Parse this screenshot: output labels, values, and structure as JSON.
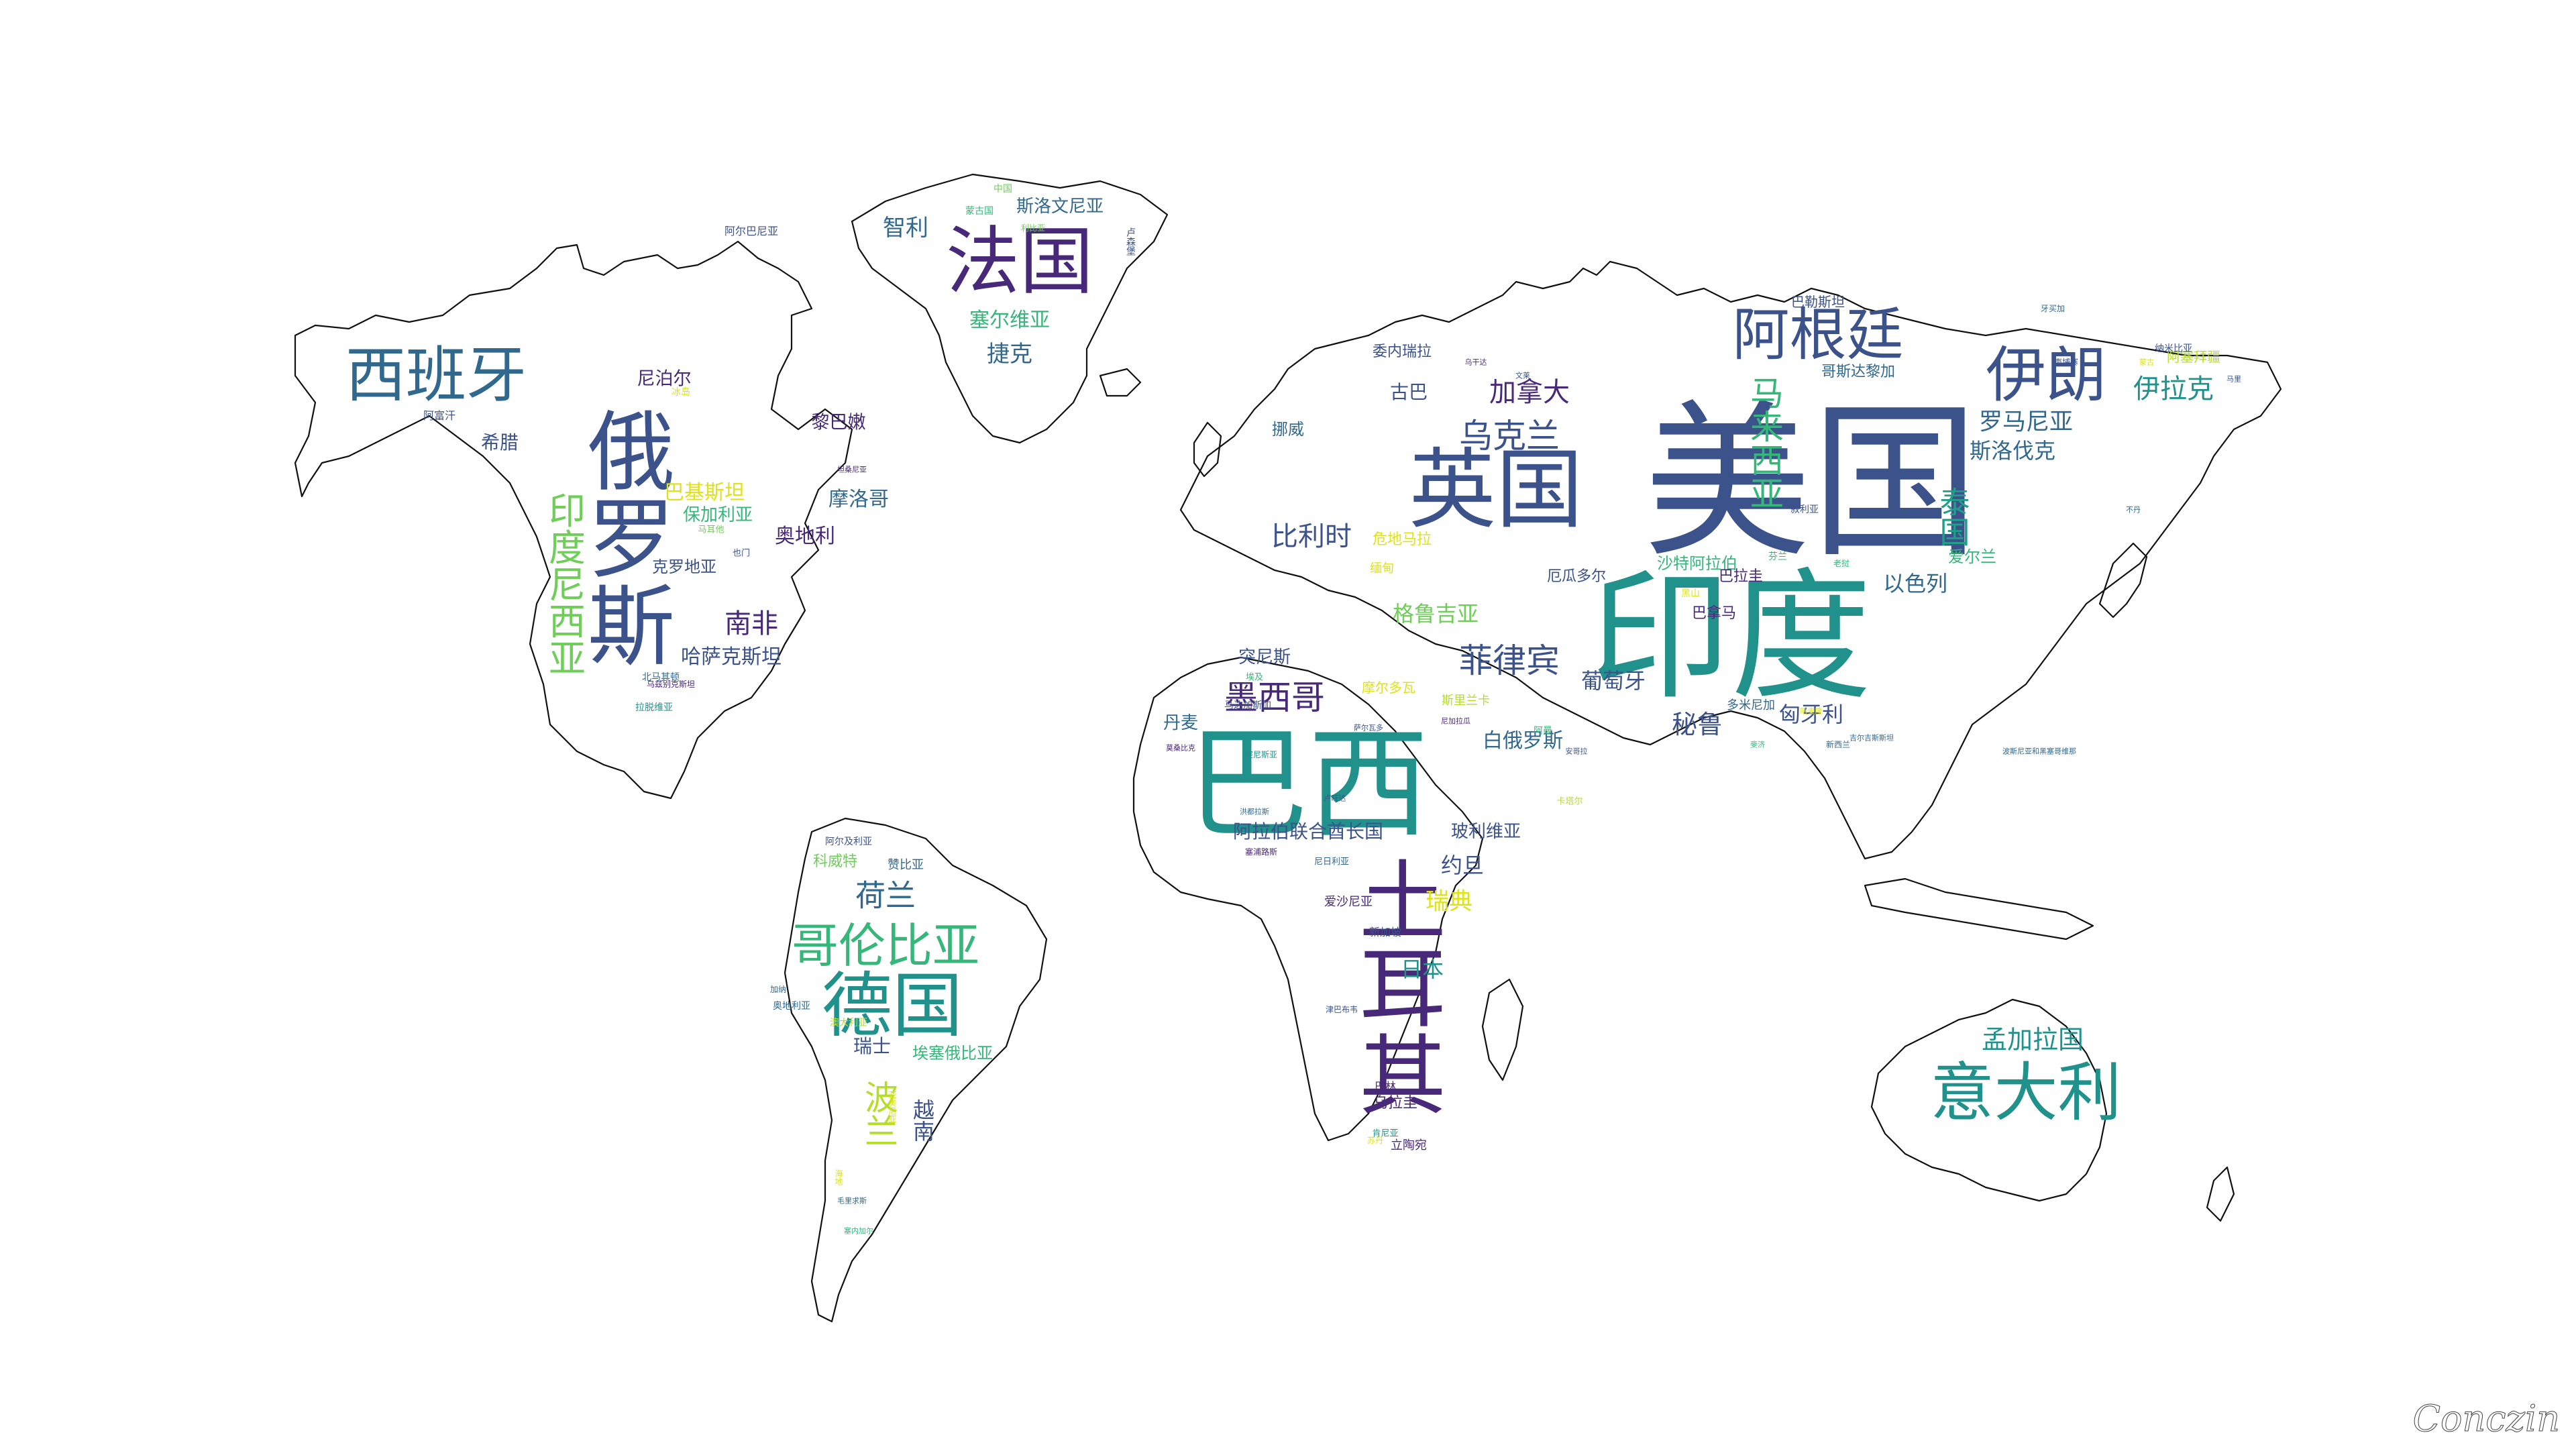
{
  "watermark": "Conczin",
  "palette": {
    "dark_purple": "#440154",
    "indigo": "#3b528b",
    "blue": "#31688e",
    "teal": "#21918c",
    "green_teal": "#1f9e89",
    "green": "#35b779",
    "light_green": "#6ece58",
    "yellow_green": "#b5de2b",
    "yellow": "#dde318",
    "outline": "#111111"
  },
  "words": [
    {
      "t": "美国",
      "c": "#3b528b"
    },
    {
      "t": "印度",
      "c": "#21918c"
    },
    {
      "t": "巴西",
      "c": "#21918c"
    },
    {
      "t": "俄罗斯",
      "c": "#3b528b"
    },
    {
      "t": "土耳其",
      "c": "#482878"
    },
    {
      "t": "英国",
      "c": "#3b528b"
    },
    {
      "t": "法国",
      "c": "#482878"
    },
    {
      "t": "德国",
      "c": "#21918c"
    },
    {
      "t": "西班牙",
      "c": "#31688e"
    },
    {
      "t": "意大利",
      "c": "#21918c"
    },
    {
      "t": "阿根廷",
      "c": "#3b528b"
    },
    {
      "t": "伊朗",
      "c": "#3b528b"
    },
    {
      "t": "哥伦比亚",
      "c": "#35b779"
    },
    {
      "t": "印度尼西亚",
      "c": "#6ece58"
    },
    {
      "t": "菲律宾",
      "c": "#3b528b"
    },
    {
      "t": "墨西哥",
      "c": "#482878"
    },
    {
      "t": "乌克兰",
      "c": "#3b528b"
    },
    {
      "t": "马来西亚",
      "c": "#35b779"
    },
    {
      "t": "荷兰",
      "c": "#31688e"
    },
    {
      "t": "波兰",
      "c": "#b5de2b"
    },
    {
      "t": "伊拉克",
      "c": "#21918c"
    },
    {
      "t": "南非",
      "c": "#482878"
    },
    {
      "t": "加拿大",
      "c": "#482878"
    },
    {
      "t": "孟加拉国",
      "c": "#21918c"
    },
    {
      "t": "泰国",
      "c": "#1f9e89"
    },
    {
      "t": "罗马尼亚",
      "c": "#31688e"
    },
    {
      "t": "斯洛伐克",
      "c": "#31688e"
    },
    {
      "t": "比利时",
      "c": "#3b528b"
    },
    {
      "t": "格鲁吉亚",
      "c": "#6ece58"
    },
    {
      "t": "葡萄牙",
      "c": "#3b528b"
    },
    {
      "t": "秘鲁",
      "c": "#3b528b"
    },
    {
      "t": "匈牙利",
      "c": "#3b528b"
    },
    {
      "t": "以色列",
      "c": "#31688e"
    },
    {
      "t": "白俄罗斯",
      "c": "#31688e"
    },
    {
      "t": "瑞典",
      "c": "#dde318"
    },
    {
      "t": "约旦",
      "c": "#3b528b"
    },
    {
      "t": "日本",
      "c": "#21918c"
    },
    {
      "t": "捷克",
      "c": "#31688e"
    },
    {
      "t": "塞尔维亚",
      "c": "#35b779"
    },
    {
      "t": "智利",
      "c": "#31688e"
    },
    {
      "t": "斯洛文尼亚",
      "c": "#31688e"
    },
    {
      "t": "尼泊尔",
      "c": "#482878"
    },
    {
      "t": "黎巴嫩",
      "c": "#482878"
    },
    {
      "t": "巴基斯坦",
      "c": "#dde318"
    },
    {
      "t": "保加利亚",
      "c": "#35b779"
    },
    {
      "t": "摩洛哥",
      "c": "#31688e"
    },
    {
      "t": "奥地利",
      "c": "#482878"
    },
    {
      "t": "克罗地亚",
      "c": "#3b528b"
    },
    {
      "t": "哈萨克斯坦",
      "c": "#3b528b"
    },
    {
      "t": "希腊",
      "c": "#3b528b"
    },
    {
      "t": "突尼斯",
      "c": "#3b528b"
    },
    {
      "t": "丹麦",
      "c": "#31688e"
    },
    {
      "t": "阿拉伯联合酋长国",
      "c": "#3b528b"
    },
    {
      "t": "玻利维亚",
      "c": "#3b528b"
    },
    {
      "t": "瑞士",
      "c": "#3b528b"
    },
    {
      "t": "越南",
      "c": "#3b528b"
    },
    {
      "t": "埃塞俄比亚",
      "c": "#35b779"
    },
    {
      "t": "爱尔兰",
      "c": "#35b779"
    },
    {
      "t": "巴拿马",
      "c": "#482878"
    },
    {
      "t": "沙特阿拉伯",
      "c": "#35b779"
    },
    {
      "t": "古巴",
      "c": "#3b528b"
    },
    {
      "t": "挪威",
      "c": "#31688e"
    },
    {
      "t": "委内瑞拉",
      "c": "#3b528b"
    },
    {
      "t": "哥斯达黎加",
      "c": "#31688e"
    },
    {
      "t": "巴勒斯坦",
      "c": "#3b528b"
    },
    {
      "t": "厄瓜多尔",
      "c": "#3b528b"
    },
    {
      "t": "巴拉圭",
      "c": "#482878"
    },
    {
      "t": "多米尼加",
      "c": "#31688e"
    },
    {
      "t": "危地马拉",
      "c": "#dde318"
    },
    {
      "t": "缅甸",
      "c": "#dde318"
    },
    {
      "t": "摩尔多瓦",
      "c": "#dde318"
    },
    {
      "t": "斯里兰卡",
      "c": "#b5de2b"
    },
    {
      "t": "阿塞拜疆",
      "c": "#b5de2b"
    },
    {
      "t": "科威特",
      "c": "#6ece58"
    },
    {
      "t": "赞比亚",
      "c": "#31688e"
    },
    {
      "t": "新加坡",
      "c": "#3b528b"
    },
    {
      "t": "乌拉圭",
      "c": "#482878"
    },
    {
      "t": "立陶宛",
      "c": "#482878"
    },
    {
      "t": "巴林",
      "c": "#482878"
    },
    {
      "t": "爱沙尼亚",
      "c": "#482878"
    },
    {
      "t": "奥地利亚",
      "c": "#31688e"
    },
    {
      "t": "阿尔巴尼亚",
      "c": "#3b528b"
    },
    {
      "t": "中国",
      "c": "#6ece58"
    },
    {
      "t": "蒙古国",
      "c": "#35b779"
    },
    {
      "t": "阿富汗",
      "c": "#3b528b"
    },
    {
      "t": "阿尔及利亚",
      "c": "#3b528b"
    },
    {
      "t": "纳米比亚",
      "c": "#3b528b"
    },
    {
      "t": "冰岛",
      "c": "#dde318"
    },
    {
      "t": "北马其顿",
      "c": "#31688e"
    },
    {
      "t": "拉脱维亚",
      "c": "#21918c"
    },
    {
      "t": "澳大利亚",
      "c": "#b5de2b"
    },
    {
      "t": "卢森堡",
      "c": "#3b528b"
    },
    {
      "t": "马耳他",
      "c": "#6ece58"
    },
    {
      "t": "也门",
      "c": "#3b528b"
    },
    {
      "t": "黑山",
      "c": "#dde318"
    },
    {
      "t": "芬兰",
      "c": "#35b779"
    },
    {
      "t": "叙利亚",
      "c": "#3b528b"
    },
    {
      "t": "阿曼",
      "c": "#35b779"
    },
    {
      "t": "卡塔尔",
      "c": "#b5de2b"
    },
    {
      "t": "马达加斯加",
      "c": "#3b528b"
    },
    {
      "t": "埃及",
      "c": "#35b779"
    },
    {
      "t": "肯尼亚",
      "c": "#21918c"
    },
    {
      "t": "尼日利亚",
      "c": "#31688e"
    },
    {
      "t": "苏丹",
      "c": "#dde318"
    },
    {
      "t": "利比亚",
      "c": "#6ece58"
    },
    {
      "t": "加纳",
      "c": "#31688e"
    },
    {
      "t": "津巴布韦",
      "c": "#3b528b"
    },
    {
      "t": "乌兹别克斯坦",
      "c": "#482878"
    },
    {
      "t": "亚美尼亚",
      "c": "#dde318"
    },
    {
      "t": "海地",
      "c": "#dde318"
    },
    {
      "t": "牙买加",
      "c": "#31688e"
    },
    {
      "t": "柬埔寨",
      "c": "#3b528b"
    },
    {
      "t": "老挝",
      "c": "#35b779"
    },
    {
      "t": "新西兰",
      "c": "#31688e"
    },
    {
      "t": "塞浦路斯",
      "c": "#482878"
    },
    {
      "t": "波斯尼亚和黑塞哥维那",
      "c": "#31688e"
    },
    {
      "t": "突尼斯亚",
      "c": "#21918c"
    },
    {
      "t": "莫桑比克",
      "c": "#482878"
    },
    {
      "t": "安哥拉",
      "c": "#3b528b"
    },
    {
      "t": "乌干达",
      "c": "#482878"
    },
    {
      "t": "喀麦隆",
      "c": "#dde318"
    },
    {
      "t": "吉尔吉斯斯坦",
      "c": "#31688e"
    },
    {
      "t": "萨尔瓦多",
      "c": "#3b528b"
    },
    {
      "t": "洪都拉斯",
      "c": "#31688e"
    },
    {
      "t": "尼加拉瓜",
      "c": "#482878"
    },
    {
      "t": "卢旺达",
      "c": "#3b528b"
    },
    {
      "t": "坦桑尼亚",
      "c": "#482878"
    },
    {
      "t": "马里",
      "c": "#3b528b"
    },
    {
      "t": "塞内加尔",
      "c": "#35b779"
    },
    {
      "t": "毛里求斯",
      "c": "#31688e"
    },
    {
      "t": "蒙古",
      "c": "#dde318"
    },
    {
      "t": "不丹",
      "c": "#31688e"
    },
    {
      "t": "文莱",
      "c": "#3b528b"
    },
    {
      "t": "斐济",
      "c": "#35b779"
    }
  ]
}
